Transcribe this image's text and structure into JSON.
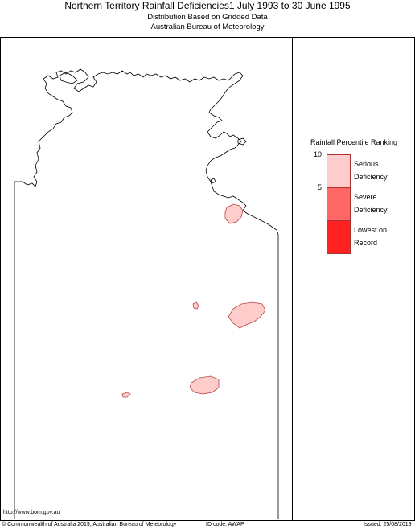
{
  "header": {
    "title": "Northern Territory Rainfall Deficiencies1 July 1993 to 30 June 1995",
    "subtitle1": "Distribution Based on Gridded Data",
    "subtitle2": "Australian Bureau of Meteorology"
  },
  "legend": {
    "title": "Rainfall Percentile Ranking",
    "tick_top": "10",
    "tick_mid": "5",
    "classes": [
      {
        "line1": "Serious",
        "line2": "Deficiency",
        "color": "#ffcccc"
      },
      {
        "line1": "Severe",
        "line2": "Deficiency",
        "color": "#ff6666"
      },
      {
        "line1": "Lowest on",
        "line2": "Record",
        "color": "#ff2020"
      }
    ]
  },
  "footer": {
    "url": "http://www.bom.gov.au",
    "copyright": "© Commonwealth of Australia 2019, Australian Bureau of Meteorology",
    "id_code": "ID code: AWAP",
    "issued": "Issued: 25/08/2019"
  },
  "map": {
    "outline_color": "#000000",
    "deficiency_fill": "#ffcccc",
    "deficiency_stroke": "#bb4444"
  }
}
